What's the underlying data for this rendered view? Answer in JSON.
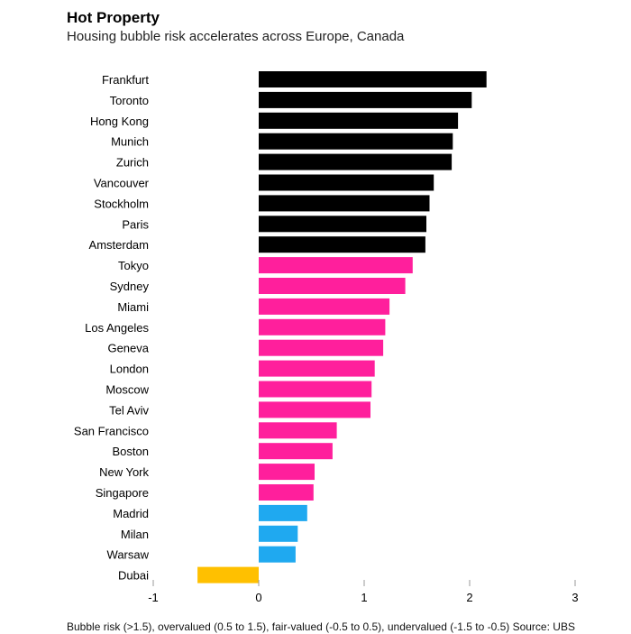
{
  "header": {
    "title": "Hot Property",
    "subtitle": "Housing bubble risk accelerates across Europe, Canada"
  },
  "footnote": "Bubble risk (>1.5), overvalued (0.5 to 1.5), fair-valued (-0.5 to 0.5), undervalued (-1.5 to -0.5) Source: UBS",
  "colors": {
    "bubble_risk": "#000000",
    "overvalued": "#ff1f9c",
    "fair_valued": "#1fa9f0",
    "undervalued": "#ffc000",
    "axis": "#999999"
  },
  "chart_data": {
    "type": "bar",
    "orientation": "horizontal",
    "xlim": [
      -1,
      3
    ],
    "xticks": [
      "-1",
      "0",
      "1",
      "2",
      "3"
    ],
    "categories": [
      "Frankfurt",
      "Toronto",
      "Hong Kong",
      "Munich",
      "Zurich",
      "Vancouver",
      "Stockholm",
      "Paris",
      "Amsterdam",
      "Tokyo",
      "Sydney",
      "Miami",
      "Los Angeles",
      "Geneva",
      "London",
      "Moscow",
      "Tel Aviv",
      "San Francisco",
      "Boston",
      "New York",
      "Singapore",
      "Madrid",
      "Milan",
      "Warsaw",
      "Dubai"
    ],
    "values": [
      2.16,
      2.02,
      1.89,
      1.84,
      1.83,
      1.66,
      1.62,
      1.59,
      1.58,
      1.46,
      1.39,
      1.24,
      1.2,
      1.18,
      1.1,
      1.07,
      1.06,
      0.74,
      0.7,
      0.53,
      0.52,
      0.46,
      0.37,
      0.35,
      -0.58
    ],
    "groups": [
      "bubble_risk",
      "bubble_risk",
      "bubble_risk",
      "bubble_risk",
      "bubble_risk",
      "bubble_risk",
      "bubble_risk",
      "bubble_risk",
      "bubble_risk",
      "overvalued",
      "overvalued",
      "overvalued",
      "overvalued",
      "overvalued",
      "overvalued",
      "overvalued",
      "overvalued",
      "overvalued",
      "overvalued",
      "overvalued",
      "overvalued",
      "fair_valued",
      "fair_valued",
      "fair_valued",
      "undervalued"
    ],
    "grid": false
  }
}
